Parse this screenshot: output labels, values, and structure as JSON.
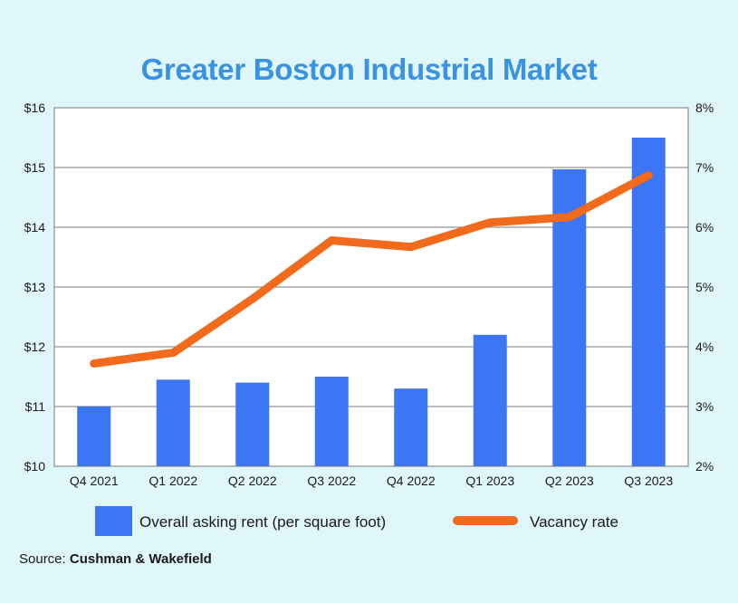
{
  "chart_data": {
    "type": "bar",
    "title": "Greater Boston Industrial Market",
    "categories": [
      "Q4 2021",
      "Q1 2022",
      "Q2 2022",
      "Q3 2022",
      "Q4 2022",
      "Q1 2023",
      "Q2 2023",
      "Q3 2023"
    ],
    "series": [
      {
        "name": "Overall asking rent (per square foot)",
        "type": "bar",
        "axis": "left",
        "color": "#3d76f5",
        "values": [
          11.0,
          11.45,
          11.4,
          11.5,
          11.3,
          12.2,
          14.97,
          15.5
        ]
      },
      {
        "name": "Vacancy rate",
        "type": "line",
        "axis": "right",
        "color": "#f26a1b",
        "values": [
          3.72,
          3.9,
          4.8,
          5.78,
          5.67,
          6.08,
          6.17,
          6.87
        ]
      }
    ],
    "y_left": {
      "ylim": [
        10,
        16
      ],
      "ticks": [
        "$10",
        "$11",
        "$12",
        "$13",
        "$14",
        "$15",
        "$16"
      ]
    },
    "y_right": {
      "ylim": [
        2,
        8
      ],
      "ticks": [
        "2%",
        "3%",
        "4%",
        "5%",
        "6%",
        "7%",
        "8%"
      ]
    },
    "grid": true,
    "legend_position": "bottom"
  },
  "source": {
    "prefix": "Source:",
    "name": "Cushman & Wakefield"
  }
}
